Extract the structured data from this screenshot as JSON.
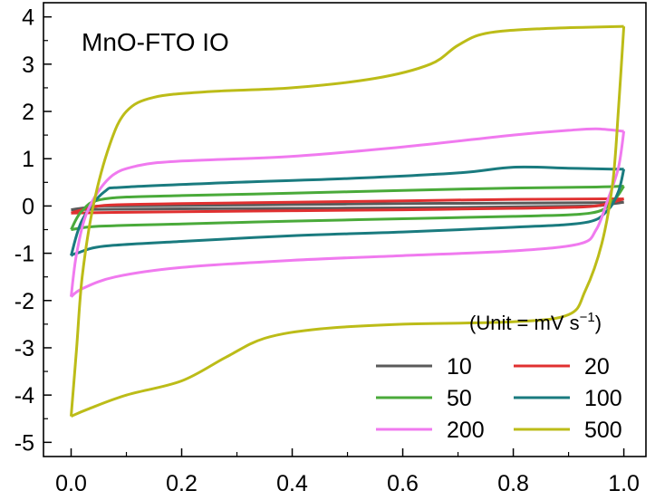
{
  "chart_data": {
    "type": "line",
    "title": "MnO-FTO IO",
    "xlabel": "",
    "ylabel": "",
    "xlim": [
      -0.05,
      1.04
    ],
    "ylim": [
      -5.3,
      4.3
    ],
    "x_ticks": [
      0.0,
      0.2,
      0.4,
      0.6,
      0.8,
      1.0
    ],
    "x_tick_labels": [
      "0.0",
      "0.2",
      "0.4",
      "0.6",
      "0.8",
      "1.0"
    ],
    "y_ticks": [
      -5,
      -4,
      -3,
      -2,
      -1,
      0,
      1,
      2,
      3,
      4
    ],
    "y_tick_labels": [
      "-5",
      "-4",
      "-3",
      "-2",
      "-1",
      "0",
      "1",
      "2",
      "3",
      "4"
    ],
    "grid": false,
    "legend_title_main": "(Unit = mV s",
    "legend_title_sup": "−1",
    "legend_title_close": ")",
    "legend_position": "bottom-right",
    "series": [
      {
        "name": "10",
        "color": "#5a5a5a",
        "forward": [
          [
            0.0,
            -0.08
          ],
          [
            0.03,
            -0.03
          ],
          [
            0.06,
            0.0
          ],
          [
            0.2,
            0.01
          ],
          [
            0.4,
            0.03
          ],
          [
            0.6,
            0.05
          ],
          [
            0.8,
            0.06
          ],
          [
            0.95,
            0.07
          ],
          [
            1.0,
            0.08
          ]
        ],
        "reverse": [
          [
            1.0,
            0.08
          ],
          [
            0.97,
            0.03
          ],
          [
            0.94,
            0.0
          ],
          [
            0.8,
            -0.02
          ],
          [
            0.6,
            -0.04
          ],
          [
            0.4,
            -0.05
          ],
          [
            0.2,
            -0.06
          ],
          [
            0.05,
            -0.07
          ],
          [
            0.0,
            -0.08
          ]
        ]
      },
      {
        "name": "20",
        "color": "#e03030",
        "forward": [
          [
            0.0,
            -0.15
          ],
          [
            0.03,
            -0.05
          ],
          [
            0.07,
            0.02
          ],
          [
            0.2,
            0.05
          ],
          [
            0.4,
            0.08
          ],
          [
            0.6,
            0.11
          ],
          [
            0.8,
            0.14
          ],
          [
            0.95,
            0.15
          ],
          [
            1.0,
            0.15
          ]
        ],
        "reverse": [
          [
            1.0,
            0.15
          ],
          [
            0.97,
            0.05
          ],
          [
            0.93,
            -0.02
          ],
          [
            0.8,
            -0.05
          ],
          [
            0.6,
            -0.08
          ],
          [
            0.4,
            -0.1
          ],
          [
            0.2,
            -0.12
          ],
          [
            0.05,
            -0.14
          ],
          [
            0.0,
            -0.15
          ]
        ]
      },
      {
        "name": "50",
        "color": "#4aaa3a",
        "forward": [
          [
            0.0,
            -0.5
          ],
          [
            0.02,
            -0.1
          ],
          [
            0.06,
            0.15
          ],
          [
            0.2,
            0.22
          ],
          [
            0.4,
            0.27
          ],
          [
            0.6,
            0.33
          ],
          [
            0.8,
            0.38
          ],
          [
            0.95,
            0.4
          ],
          [
            1.0,
            0.42
          ]
        ],
        "reverse": [
          [
            1.0,
            0.42
          ],
          [
            0.98,
            0.1
          ],
          [
            0.94,
            -0.15
          ],
          [
            0.8,
            -0.22
          ],
          [
            0.6,
            -0.27
          ],
          [
            0.4,
            -0.32
          ],
          [
            0.2,
            -0.38
          ],
          [
            0.05,
            -0.43
          ],
          [
            0.0,
            -0.5
          ]
        ]
      },
      {
        "name": "100",
        "color": "#1a7b7f",
        "forward": [
          [
            0.0,
            -1.05
          ],
          [
            0.02,
            -0.3
          ],
          [
            0.06,
            0.3
          ],
          [
            0.1,
            0.4
          ],
          [
            0.3,
            0.5
          ],
          [
            0.5,
            0.58
          ],
          [
            0.7,
            0.7
          ],
          [
            0.8,
            0.82
          ],
          [
            0.9,
            0.8
          ],
          [
            0.98,
            0.78
          ],
          [
            1.0,
            0.78
          ]
        ],
        "reverse": [
          [
            1.0,
            0.78
          ],
          [
            0.99,
            0.3
          ],
          [
            0.97,
            -0.1
          ],
          [
            0.93,
            -0.35
          ],
          [
            0.8,
            -0.45
          ],
          [
            0.6,
            -0.55
          ],
          [
            0.4,
            -0.63
          ],
          [
            0.2,
            -0.75
          ],
          [
            0.06,
            -0.85
          ],
          [
            0.01,
            -1.0
          ],
          [
            0.0,
            -1.05
          ]
        ]
      },
      {
        "name": "200",
        "color": "#f07aef",
        "forward": [
          [
            0.0,
            -1.92
          ],
          [
            0.01,
            -1.0
          ],
          [
            0.03,
            -0.1
          ],
          [
            0.07,
            0.6
          ],
          [
            0.12,
            0.85
          ],
          [
            0.2,
            0.95
          ],
          [
            0.4,
            1.05
          ],
          [
            0.6,
            1.25
          ],
          [
            0.8,
            1.5
          ],
          [
            0.9,
            1.6
          ],
          [
            0.95,
            1.63
          ],
          [
            1.0,
            1.58
          ]
        ],
        "reverse": [
          [
            1.0,
            1.58
          ],
          [
            0.99,
            0.8
          ],
          [
            0.97,
            0.1
          ],
          [
            0.95,
            -0.5
          ],
          [
            0.92,
            -0.8
          ],
          [
            0.8,
            -0.95
          ],
          [
            0.6,
            -1.05
          ],
          [
            0.4,
            -1.15
          ],
          [
            0.2,
            -1.3
          ],
          [
            0.08,
            -1.5
          ],
          [
            0.02,
            -1.75
          ],
          [
            0.0,
            -1.92
          ]
        ]
      },
      {
        "name": "500",
        "color": "#bcbc18",
        "forward": [
          [
            0.0,
            -4.45
          ],
          [
            0.01,
            -3.0
          ],
          [
            0.02,
            -1.5
          ],
          [
            0.04,
            0.0
          ],
          [
            0.07,
            1.3
          ],
          [
            0.1,
            2.0
          ],
          [
            0.15,
            2.3
          ],
          [
            0.25,
            2.42
          ],
          [
            0.4,
            2.5
          ],
          [
            0.55,
            2.7
          ],
          [
            0.65,
            3.0
          ],
          [
            0.7,
            3.4
          ],
          [
            0.75,
            3.65
          ],
          [
            0.85,
            3.75
          ],
          [
            1.0,
            3.8
          ]
        ],
        "reverse": [
          [
            1.0,
            3.8
          ],
          [
            0.99,
            2.0
          ],
          [
            0.98,
            0.5
          ],
          [
            0.96,
            -0.8
          ],
          [
            0.93,
            -1.8
          ],
          [
            0.9,
            -2.3
          ],
          [
            0.8,
            -2.45
          ],
          [
            0.6,
            -2.5
          ],
          [
            0.45,
            -2.6
          ],
          [
            0.35,
            -2.8
          ],
          [
            0.28,
            -3.2
          ],
          [
            0.2,
            -3.7
          ],
          [
            0.1,
            -4.0
          ],
          [
            0.03,
            -4.3
          ],
          [
            0.0,
            -4.45
          ]
        ]
      }
    ]
  }
}
